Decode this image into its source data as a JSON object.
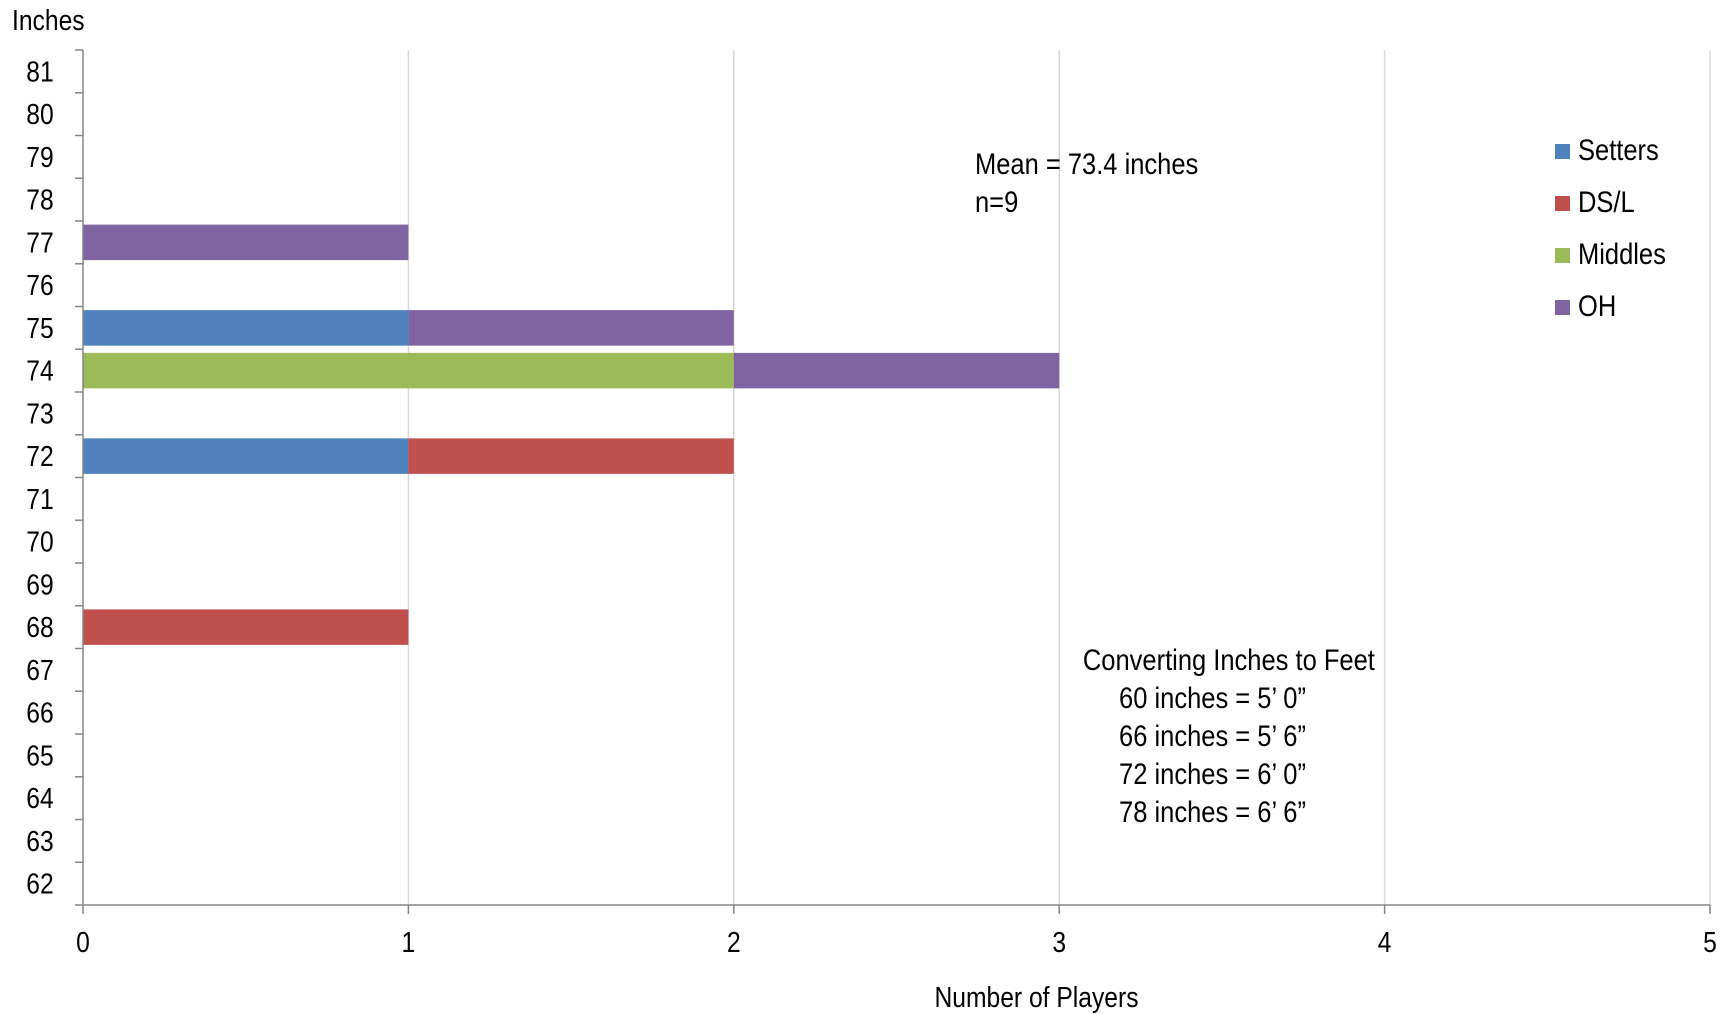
{
  "chart_data": {
    "type": "bar",
    "orientation": "horizontal",
    "stacked": true,
    "ylabel": "Inches",
    "xlabel": "Number of Players",
    "categories": [
      62,
      63,
      64,
      65,
      66,
      67,
      68,
      69,
      70,
      71,
      72,
      73,
      74,
      75,
      76,
      77,
      78,
      79,
      80,
      81
    ],
    "xlim": [
      0,
      5
    ],
    "ylim": [
      62,
      81
    ],
    "x_ticks": [
      "0",
      "1",
      "2",
      "3",
      "4",
      "5"
    ],
    "grid": "vertical",
    "legend_position": "right",
    "series": [
      {
        "name": "Setters",
        "color": "#4f81bd",
        "values": [
          0,
          0,
          0,
          0,
          0,
          0,
          0,
          0,
          0,
          0,
          1,
          0,
          0,
          1,
          0,
          0,
          0,
          0,
          0,
          0
        ]
      },
      {
        "name": "DS/L",
        "color": "#c0504d",
        "values": [
          0,
          0,
          0,
          0,
          0,
          0,
          1,
          0,
          0,
          0,
          1,
          0,
          0,
          0,
          0,
          0,
          0,
          0,
          0,
          0
        ]
      },
      {
        "name": "Middles",
        "color": "#9bbb59",
        "values": [
          0,
          0,
          0,
          0,
          0,
          0,
          0,
          0,
          0,
          0,
          0,
          0,
          2,
          0,
          0,
          0,
          0,
          0,
          0,
          0
        ]
      },
      {
        "name": "OH",
        "color": "#8064a2",
        "values": [
          0,
          0,
          0,
          0,
          0,
          0,
          0,
          0,
          0,
          0,
          0,
          0,
          1,
          1,
          0,
          1,
          0,
          0,
          0,
          0
        ]
      }
    ],
    "annotations": {
      "mean": [
        "Mean = 73.4 inches",
        "n=9"
      ],
      "conversion": [
        "Converting Inches to Feet",
        "60 inches = 5’ 0”",
        "66 inches = 5’ 6”",
        "72 inches = 6’ 0”",
        "78 inches = 6’ 6”"
      ]
    }
  }
}
